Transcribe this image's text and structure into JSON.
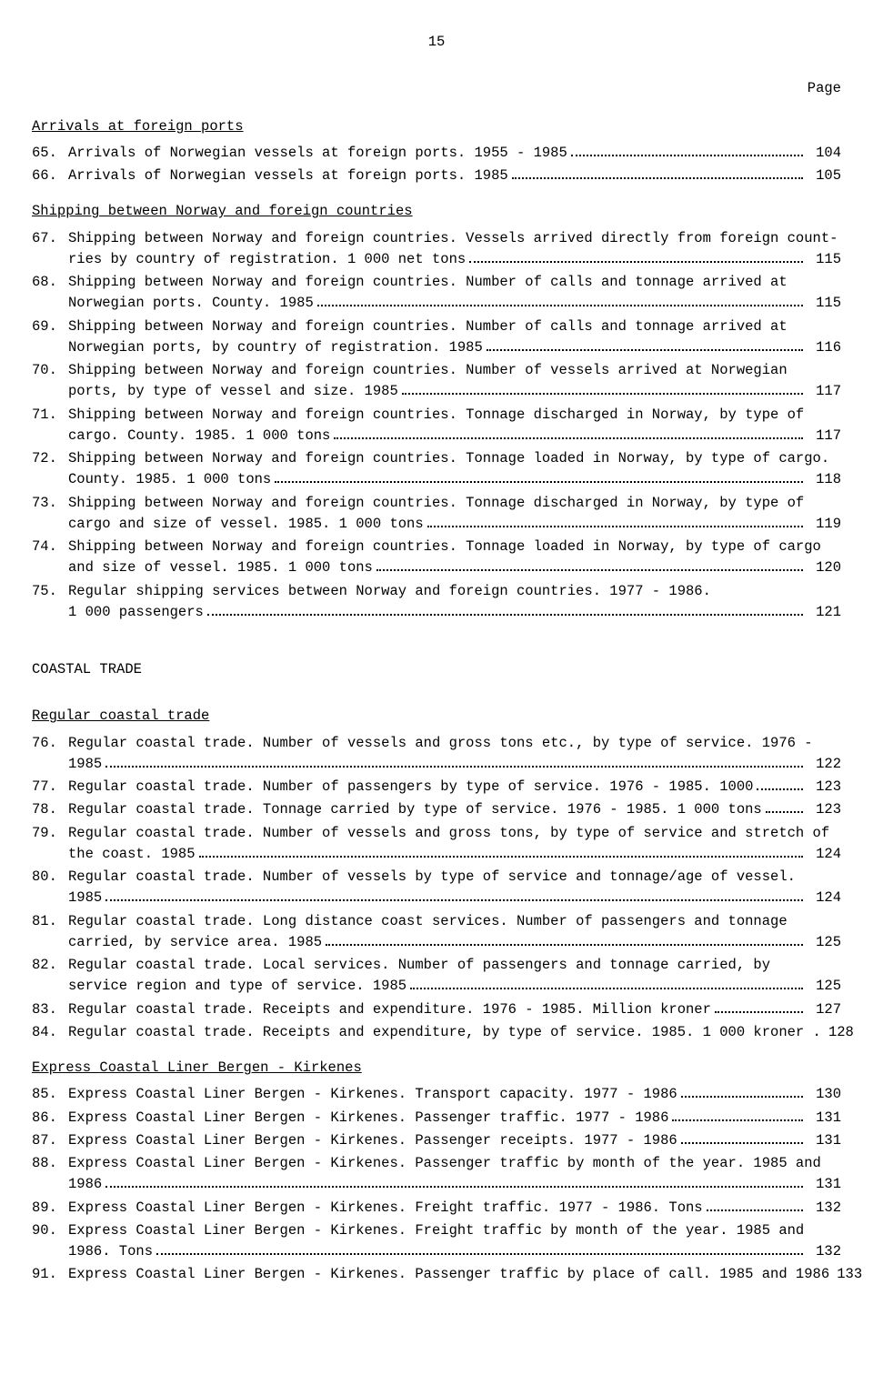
{
  "page_number_top": "15",
  "page_label": "Page",
  "sections": [
    {
      "heading": "Arrivals at foreign ports",
      "underline": true,
      "entries": [
        {
          "num": "65.",
          "lines": [
            "Arrivals of Norwegian vessels at foreign ports.  1955 - 1985"
          ],
          "page": "104"
        },
        {
          "num": "66.",
          "lines": [
            "Arrivals of Norwegian vessels at foreign ports.  1985"
          ],
          "page": "105"
        }
      ]
    },
    {
      "heading": "Shipping between Norway and foreign countries",
      "underline": true,
      "entries": [
        {
          "num": "67.",
          "lines": [
            "Shipping between Norway and foreign countries.  Vessels arrived directly from foreign count-",
            "ries by country of registration.  1 000 net tons"
          ],
          "page": "115"
        },
        {
          "num": "68.",
          "lines": [
            "Shipping between Norway and foreign countries.  Number of calls and tonnage arrived at",
            "Norwegian ports.  County.  1985"
          ],
          "page": "115"
        },
        {
          "num": "69.",
          "lines": [
            "Shipping between Norway and foreign countries.  Number of calls and tonnage arrived at",
            "Norwegian ports, by country of registration.  1985"
          ],
          "page": "116"
        },
        {
          "num": "70.",
          "lines": [
            "Shipping between Norway and foreign countries.  Number of vessels arrived at Norwegian",
            "ports, by type of vessel and size.  1985"
          ],
          "page": "117"
        },
        {
          "num": "71.",
          "lines": [
            "Shipping between Norway and foreign countries.  Tonnage discharged in Norway, by type of",
            "cargo.  County.  1985.  1 000 tons"
          ],
          "page": "117"
        },
        {
          "num": "72.",
          "lines": [
            "Shipping between Norway and foreign countries.  Tonnage loaded in Norway, by type of cargo.",
            "County.  1985.  1 000 tons"
          ],
          "page": "118"
        },
        {
          "num": "73.",
          "lines": [
            "Shipping between Norway and foreign countries.  Tonnage discharged in Norway, by type of",
            "cargo and size of vessel.  1985.  1 000 tons"
          ],
          "page": "119"
        },
        {
          "num": "74.",
          "lines": [
            "Shipping between Norway and foreign countries.  Tonnage loaded in Norway, by type of cargo",
            "and size of vessel.  1985.  1 000 tons"
          ],
          "page": "120"
        },
        {
          "num": "75.",
          "lines": [
            "Regular shipping services between Norway and foreign countries.  1977 - 1986.",
            "1 000 passengers"
          ],
          "page": "121"
        }
      ]
    },
    {
      "heading": "COASTAL TRADE",
      "underline": false,
      "main": true,
      "entries": []
    },
    {
      "heading": "Regular coastal trade",
      "underline": true,
      "entries": [
        {
          "num": "76.",
          "lines": [
            "Regular coastal trade.  Number of vessels and gross tons etc., by type of service.  1976 -",
            "1985"
          ],
          "page": "122"
        },
        {
          "num": "77.",
          "lines": [
            "Regular coastal trade.  Number of passengers by type of service.  1976 - 1985.  1000"
          ],
          "page": "123"
        },
        {
          "num": "78.",
          "lines": [
            "Regular coastal trade.  Tonnage carried by type of service.  1976 - 1985.  1 000 tons"
          ],
          "page": "123"
        },
        {
          "num": "79.",
          "lines": [
            "Regular coastal trade.  Number of vessels and gross tons, by type of service and stretch of",
            "the coast.  1985"
          ],
          "page": "124"
        },
        {
          "num": "80.",
          "lines": [
            "Regular coastal trade.  Number of vessels by type of service and tonnage/age of vessel.",
            "1985"
          ],
          "page": "124"
        },
        {
          "num": "81.",
          "lines": [
            "Regular coastal trade.  Long distance coast services.  Number of passengers and tonnage",
            "carried, by service area.  1985"
          ],
          "page": "125"
        },
        {
          "num": "82.",
          "lines": [
            "Regular coastal trade.  Local services.  Number of passengers and tonnage carried, by",
            "service region and type of service.  1985"
          ],
          "page": "125"
        },
        {
          "num": "83.",
          "lines": [
            "Regular coastal trade.  Receipts and expenditure.  1976 - 1985.  Million kroner"
          ],
          "page": "127"
        },
        {
          "num": "84.",
          "lines": [
            "Regular coastal trade.  Receipts and expenditure, by type of service.  1985.  1 000 kroner ."
          ],
          "page": "128",
          "no_dots": true
        }
      ]
    },
    {
      "heading": "Express Coastal Liner Bergen - Kirkenes",
      "underline": true,
      "entries": [
        {
          "num": "85.",
          "lines": [
            "Express Coastal Liner Bergen - Kirkenes.  Transport capacity.  1977 - 1986"
          ],
          "page": "130"
        },
        {
          "num": "86.",
          "lines": [
            "Express Coastal Liner Bergen - Kirkenes.  Passenger traffic.  1977 - 1986"
          ],
          "page": "131"
        },
        {
          "num": "87.",
          "lines": [
            "Express Coastal Liner Bergen - Kirkenes.  Passenger receipts.  1977 - 1986"
          ],
          "page": "131"
        },
        {
          "num": "88.",
          "lines": [
            "Express Coastal Liner Bergen - Kirkenes.  Passenger traffic by month of the year.  1985 and",
            "1986"
          ],
          "page": "131"
        },
        {
          "num": "89.",
          "lines": [
            "Express Coastal Liner Bergen - Kirkenes.  Freight traffic.  1977 - 1986.  Tons"
          ],
          "page": "132"
        },
        {
          "num": "90.",
          "lines": [
            "Express Coastal Liner Bergen - Kirkenes.  Freight traffic by month of the year.  1985 and",
            "1986.  Tons"
          ],
          "page": "132"
        },
        {
          "num": "91.",
          "lines": [
            "Express Coastal Liner Bergen - Kirkenes.  Passenger traffic by place of call.  1985 and 1986"
          ],
          "page": "133",
          "no_dots": true
        }
      ]
    }
  ]
}
